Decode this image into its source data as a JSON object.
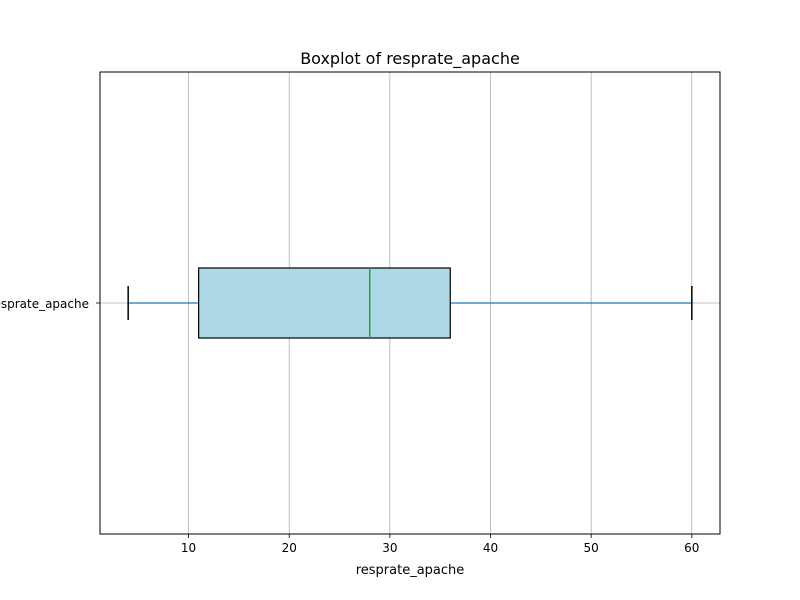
{
  "chart_data": {
    "type": "boxplot",
    "orientation": "horizontal",
    "title": "Boxplot of resprate_apache",
    "xlabel": "resprate_apache",
    "ylabel": "",
    "category_label": "resprate_apache",
    "xlim": [
      1.2,
      62.8
    ],
    "xticks": [
      10,
      20,
      30,
      40,
      50,
      60
    ],
    "xtick_labels": [
      "10",
      "20",
      "30",
      "40",
      "50",
      "60"
    ],
    "grid": true,
    "series": [
      {
        "whisker_low": 4,
        "q1": 11,
        "median": 28,
        "q3": 36,
        "whisker_high": 60
      }
    ],
    "colors": {
      "box_fill": "#add8e6",
      "box_edge": "#000000",
      "median": "#2ca02c",
      "whisker": "#1f77b4",
      "cap": "#000000",
      "grid": "#b0b0b0",
      "axes": "#000000"
    }
  }
}
